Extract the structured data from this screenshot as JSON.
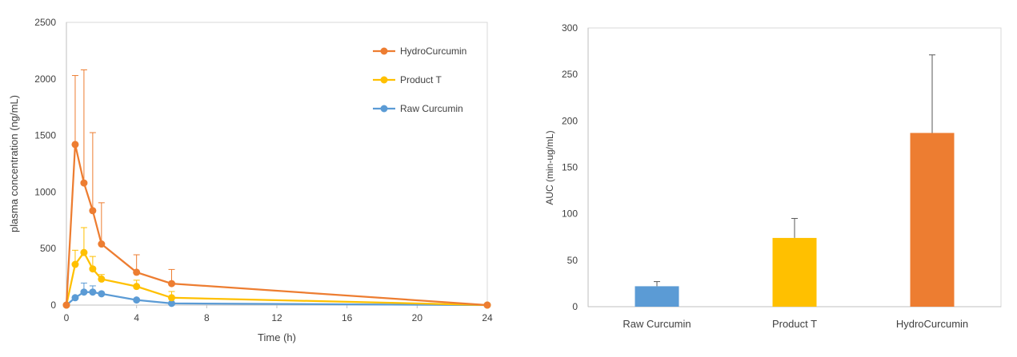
{
  "chart_data": [
    {
      "type": "line",
      "ylabel": "plasma concentration (ng/mL)",
      "xlabel": "Time (h)",
      "xlim": [
        0,
        24
      ],
      "ylim": [
        0,
        2500
      ],
      "x_ticks": [
        0,
        4,
        8,
        12,
        16,
        20,
        24
      ],
      "y_ticks": [
        0,
        500,
        1000,
        1500,
        2000,
        2500
      ],
      "legend_position": "top-right",
      "grid": false,
      "series": [
        {
          "name": "HydroCurcumin",
          "color": "#ED7D31",
          "x": [
            0,
            0.5,
            1,
            1.5,
            2,
            4,
            6,
            24
          ],
          "y": [
            0,
            1420,
            1080,
            835,
            540,
            290,
            190,
            0
          ],
          "error": [
            0,
            610,
            1000,
            690,
            365,
            155,
            125,
            0
          ]
        },
        {
          "name": "Product T",
          "color": "#FFC000",
          "x": [
            0,
            0.5,
            1,
            1.5,
            2,
            4,
            6,
            24
          ],
          "y": [
            0,
            360,
            465,
            320,
            230,
            165,
            65,
            0
          ],
          "error": [
            0,
            125,
            220,
            110,
            40,
            55,
            55,
            0
          ]
        },
        {
          "name": "Raw Curcumin",
          "color": "#5B9BD5",
          "x": [
            0,
            0.5,
            1,
            1.5,
            2,
            4,
            6,
            24
          ],
          "y": [
            0,
            65,
            115,
            115,
            100,
            45,
            15,
            0
          ],
          "error": [
            0,
            0,
            80,
            55,
            0,
            0,
            0,
            0
          ]
        }
      ]
    },
    {
      "type": "bar",
      "ylabel": "AUC (min-ug/mL)",
      "ylim": [
        0,
        300
      ],
      "y_ticks": [
        0,
        50,
        100,
        150,
        200,
        250,
        300
      ],
      "grid": false,
      "categories": [
        "Raw Curcumin",
        "Product T",
        "HydroCurcumin"
      ],
      "values": [
        22,
        74,
        187
      ],
      "error": [
        5,
        21,
        84
      ],
      "colors": [
        "#5B9BD5",
        "#FFC000",
        "#ED7D31"
      ]
    }
  ]
}
